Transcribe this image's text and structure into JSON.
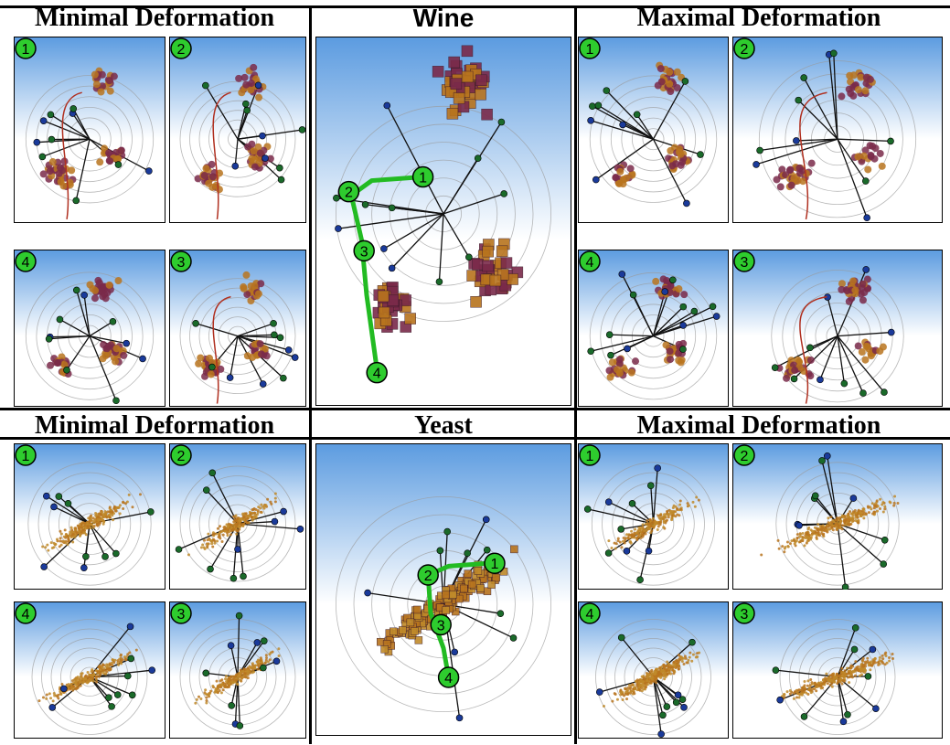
{
  "sections": {
    "top_left_title": "Minimal Deformation",
    "top_center_title": "Wine",
    "top_right_title": "Maximal Deformation",
    "bottom_left_title": "Minimal Deformation",
    "bottom_center_title": "Yeast",
    "bottom_right_title": "Maximal Deformation"
  },
  "step_badges": [
    "1",
    "2",
    "3",
    "4"
  ],
  "colors": {
    "badge_fill": "#2ecc2e",
    "path_green": "#22bb22",
    "sky_top": "#5b9be0",
    "sky_bottom": "#ffffff",
    "wine_point": "#7a2a4a",
    "wine_point_alt": "#b8741e",
    "yeast_point": "#c08a2a"
  }
}
